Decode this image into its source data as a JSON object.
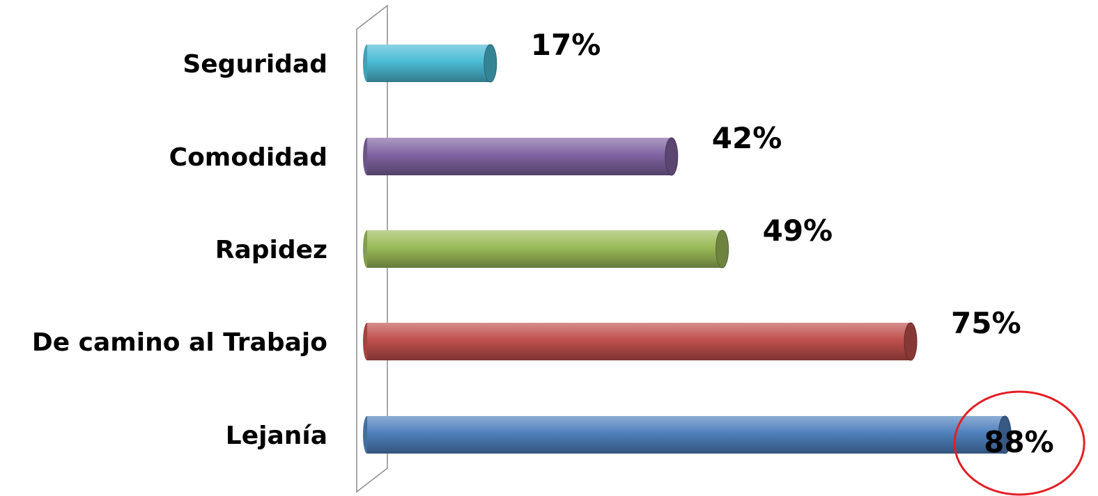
{
  "chart_data": {
    "type": "bar",
    "orientation": "horizontal",
    "categories": [
      "Seguridad",
      "Comodidad",
      "Rapidez",
      "De camino al Trabajo",
      "Lejanía"
    ],
    "values": [
      17,
      42,
      49,
      75,
      88
    ],
    "value_labels": [
      "17%",
      "42%",
      "49%",
      "75%",
      "88%"
    ],
    "unit": "%",
    "xlim": [
      0,
      100
    ],
    "grid": false,
    "legend": "none",
    "style": "3d-cylinder",
    "colors": [
      "#4bbcd6",
      "#8064a2",
      "#9bbb59",
      "#c0504d",
      "#4f81bd"
    ],
    "highlight": {
      "category": "Lejanía",
      "shape": "ellipse",
      "color": "#e31e24"
    }
  }
}
